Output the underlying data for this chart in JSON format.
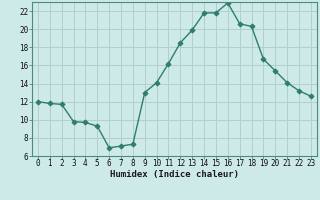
{
  "x": [
    0,
    1,
    2,
    3,
    4,
    5,
    6,
    7,
    8,
    9,
    10,
    11,
    12,
    13,
    14,
    15,
    16,
    17,
    18,
    19,
    20,
    21,
    22,
    23
  ],
  "y": [
    12,
    11.8,
    11.7,
    9.8,
    9.7,
    9.3,
    6.9,
    7.1,
    7.3,
    13.0,
    14.1,
    16.2,
    18.5,
    19.9,
    21.8,
    21.8,
    22.9,
    20.6,
    20.3,
    16.7,
    15.4,
    14.1,
    13.2,
    12.6
  ],
  "xlabel": "Humidex (Indice chaleur)",
  "ylim": [
    6,
    23
  ],
  "xlim_left": -0.5,
  "xlim_right": 23.5,
  "yticks": [
    6,
    8,
    10,
    12,
    14,
    16,
    18,
    20,
    22
  ],
  "xticks": [
    0,
    1,
    2,
    3,
    4,
    5,
    6,
    7,
    8,
    9,
    10,
    11,
    12,
    13,
    14,
    15,
    16,
    17,
    18,
    19,
    20,
    21,
    22,
    23
  ],
  "xtick_labels": [
    "0",
    "1",
    "2",
    "3",
    "4",
    "5",
    "6",
    "7",
    "8",
    "9",
    "10",
    "11",
    "12",
    "13",
    "14",
    "15",
    "16",
    "17",
    "18",
    "19",
    "20",
    "21",
    "22",
    "23"
  ],
  "line_color": "#2e7d6e",
  "bg_color": "#ceeae8",
  "grid_color": "#b0cfcd",
  "marker": "D",
  "linewidth": 1.0,
  "markersize": 2.5,
  "tick_fontsize": 5.5,
  "xlabel_fontsize": 6.5
}
